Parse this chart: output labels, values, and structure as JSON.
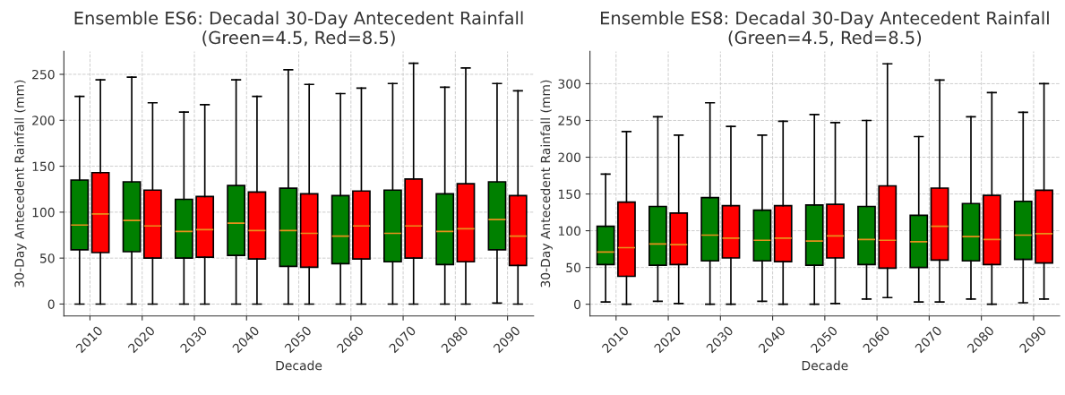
{
  "chart_data": [
    {
      "type": "box",
      "title": "Ensemble ES6: Decadal 30-Day Antecedent Rainfall\n(Green=4.5, Red=8.5)",
      "xlabel": "Decade",
      "ylabel": "30-Day Antecedent Rainfall (mm)",
      "categories": [
        "2010",
        "2020",
        "2030",
        "2040",
        "2050",
        "2060",
        "2070",
        "2080",
        "2090"
      ],
      "ylim": [
        -13,
        275
      ],
      "yticks": [
        0,
        50,
        100,
        150,
        200,
        250
      ],
      "grid": true,
      "series": [
        {
          "color": "#008000",
          "boxes": [
            {
              "low": 0,
              "q1": 59,
              "median": 86,
              "q3": 135,
              "high": 226
            },
            {
              "low": 0,
              "q1": 57,
              "median": 91,
              "q3": 133,
              "high": 247
            },
            {
              "low": 0,
              "q1": 50,
              "median": 79,
              "q3": 114,
              "high": 209
            },
            {
              "low": 0,
              "q1": 53,
              "median": 88,
              "q3": 129,
              "high": 244
            },
            {
              "low": 0,
              "q1": 41,
              "median": 80,
              "q3": 126,
              "high": 255
            },
            {
              "low": 0,
              "q1": 44,
              "median": 74,
              "q3": 118,
              "high": 229
            },
            {
              "low": 0,
              "q1": 46,
              "median": 77,
              "q3": 124,
              "high": 240
            },
            {
              "low": 0,
              "q1": 43,
              "median": 79,
              "q3": 120,
              "high": 236
            },
            {
              "low": 1,
              "q1": 59,
              "median": 92,
              "q3": 133,
              "high": 240
            }
          ]
        },
        {
          "color": "#ff0000",
          "boxes": [
            {
              "low": 0,
              "q1": 56,
              "median": 98,
              "q3": 143,
              "high": 244
            },
            {
              "low": 0,
              "q1": 50,
              "median": 85,
              "q3": 124,
              "high": 219
            },
            {
              "low": 0,
              "q1": 51,
              "median": 81,
              "q3": 117,
              "high": 217
            },
            {
              "low": 0,
              "q1": 49,
              "median": 80,
              "q3": 122,
              "high": 226
            },
            {
              "low": 0,
              "q1": 40,
              "median": 77,
              "q3": 120,
              "high": 239
            },
            {
              "low": 0,
              "q1": 49,
              "median": 85,
              "q3": 123,
              "high": 235
            },
            {
              "low": 0,
              "q1": 50,
              "median": 85,
              "q3": 136,
              "high": 262
            },
            {
              "low": 0,
              "q1": 46,
              "median": 82,
              "q3": 131,
              "high": 257
            },
            {
              "low": 0,
              "q1": 42,
              "median": 74,
              "q3": 118,
              "high": 232
            }
          ]
        }
      ]
    },
    {
      "type": "box",
      "title": "Ensemble ES8: Decadal 30-Day Antecedent Rainfall\n(Green=4.5, Red=8.5)",
      "xlabel": "Decade",
      "ylabel": "30-Day Antecedent Rainfall (mm)",
      "categories": [
        "2010",
        "2020",
        "2030",
        "2040",
        "2050",
        "2060",
        "2070",
        "2080",
        "2090"
      ],
      "ylim": [
        -16,
        344
      ],
      "yticks": [
        0,
        50,
        100,
        150,
        200,
        250,
        300
      ],
      "grid": true,
      "series": [
        {
          "color": "#008000",
          "boxes": [
            {
              "low": 3,
              "q1": 54,
              "median": 71,
              "q3": 106,
              "high": 177
            },
            {
              "low": 4,
              "q1": 53,
              "median": 82,
              "q3": 133,
              "high": 255
            },
            {
              "low": 0,
              "q1": 59,
              "median": 94,
              "q3": 145,
              "high": 274
            },
            {
              "low": 4,
              "q1": 59,
              "median": 87,
              "q3": 128,
              "high": 230
            },
            {
              "low": 0,
              "q1": 53,
              "median": 86,
              "q3": 135,
              "high": 258
            },
            {
              "low": 7,
              "q1": 54,
              "median": 88,
              "q3": 133,
              "high": 250
            },
            {
              "low": 3,
              "q1": 50,
              "median": 85,
              "q3": 121,
              "high": 228
            },
            {
              "low": 7,
              "q1": 59,
              "median": 92,
              "q3": 137,
              "high": 255
            },
            {
              "low": 2,
              "q1": 61,
              "median": 94,
              "q3": 140,
              "high": 261
            }
          ]
        },
        {
          "color": "#ff0000",
          "boxes": [
            {
              "low": 0,
              "q1": 38,
              "median": 77,
              "q3": 139,
              "high": 235
            },
            {
              "low": 1,
              "q1": 54,
              "median": 81,
              "q3": 124,
              "high": 230
            },
            {
              "low": 0,
              "q1": 63,
              "median": 90,
              "q3": 134,
              "high": 242
            },
            {
              "low": 0,
              "q1": 58,
              "median": 90,
              "q3": 134,
              "high": 249
            },
            {
              "low": 1,
              "q1": 63,
              "median": 93,
              "q3": 136,
              "high": 247
            },
            {
              "low": 9,
              "q1": 49,
              "median": 87,
              "q3": 161,
              "high": 327
            },
            {
              "low": 3,
              "q1": 60,
              "median": 106,
              "q3": 158,
              "high": 305
            },
            {
              "low": 0,
              "q1": 54,
              "median": 88,
              "q3": 148,
              "high": 288
            },
            {
              "low": 7,
              "q1": 56,
              "median": 96,
              "q3": 155,
              "high": 300
            }
          ]
        }
      ]
    }
  ]
}
